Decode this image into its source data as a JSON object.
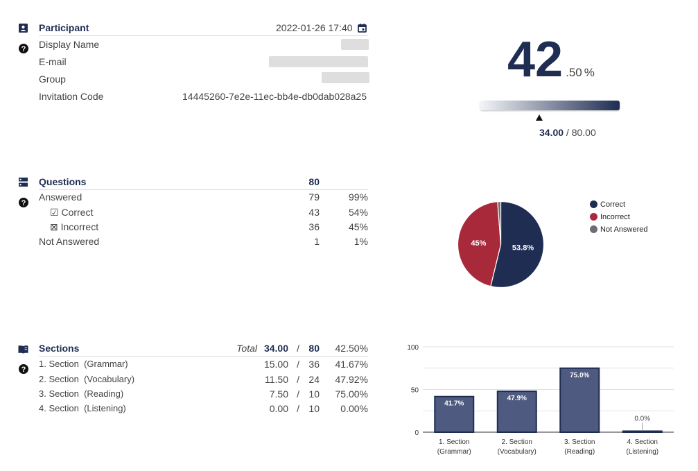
{
  "participant": {
    "title": "Participant",
    "timestamp": "2022-01-26 17:40",
    "fields": [
      {
        "label": "Display Name",
        "value": ""
      },
      {
        "label": "E-mail",
        "value": ""
      },
      {
        "label": "Group",
        "value": ""
      },
      {
        "label": "Invitation Code",
        "value": "14445260-7e2e-11ec-bb4e-db0dab028a25"
      }
    ]
  },
  "score": {
    "percent_whole": "42",
    "percent_fraction": ".50",
    "percent_sign": "%",
    "points": "34.00",
    "separator": " / ",
    "max_points": "80.00",
    "level": 0.425
  },
  "questions": {
    "title": "Questions",
    "total": "80",
    "rows": [
      {
        "label": "Answered",
        "count": "79",
        "percent": "99%"
      },
      {
        "label": "Correct",
        "mark": "☑",
        "count": "43",
        "percent": "54%"
      },
      {
        "label": "Incorrect",
        "mark": "⊠",
        "count": "36",
        "percent": "45%"
      },
      {
        "label": "Not Answered",
        "count": "1",
        "percent": "1%"
      }
    ]
  },
  "sections": {
    "title": "Sections",
    "total_label": "Total",
    "total_points": "34.00",
    "slash": "/",
    "total_max": "80",
    "total_percent": "42.50%",
    "rows": [
      {
        "name": "1. Section",
        "sub": "(Grammar)",
        "points": "15.00",
        "max": "36",
        "percent": "41.67%"
      },
      {
        "name": "2. Section",
        "sub": "(Vocabulary)",
        "points": "11.50",
        "max": "24",
        "percent": "47.92%"
      },
      {
        "name": "3. Section",
        "sub": "(Reading)",
        "points": "7.50",
        "max": "10",
        "percent": "75.00%"
      },
      {
        "name": "4. Section",
        "sub": "(Listening)",
        "points": "0.00",
        "max": "10",
        "percent": "0.00%"
      }
    ]
  },
  "colors": {
    "navy": "#1f2d52",
    "red": "#a8293a",
    "gray": "#6b6e72",
    "bar_fill": "#4f5a80"
  },
  "chart_data": [
    {
      "type": "pie",
      "labels": [
        "Correct",
        "Incorrect",
        "Not Answered"
      ],
      "values": [
        53.8,
        45.0,
        1.2
      ],
      "slice_labels": [
        "53.8%",
        "45%",
        ""
      ],
      "colors": [
        "#1f2d52",
        "#a8293a",
        "#6b6e72"
      ],
      "legend": "right"
    },
    {
      "type": "bar",
      "categories": [
        [
          "1. Section",
          "(Grammar)"
        ],
        [
          "2. Section",
          "(Vocabulary)"
        ],
        [
          "3. Section",
          "(Reading)"
        ],
        [
          "4. Section",
          "(Listening)"
        ]
      ],
      "values": [
        41.7,
        47.9,
        75.0,
        0.0
      ],
      "labels": [
        "41.7%",
        "47.9%",
        "75.0%",
        "0.0%"
      ],
      "ylim": [
        0,
        100
      ],
      "yticks": [
        "0",
        "50",
        "100"
      ],
      "grid": true
    }
  ]
}
